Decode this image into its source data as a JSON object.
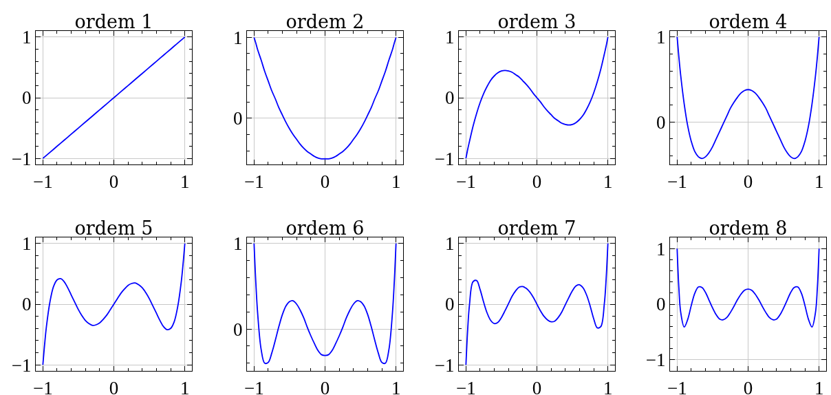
{
  "chart_data": [
    {
      "type": "line",
      "title": "ordem 1",
      "x": [
        -1,
        -0.9,
        -0.8,
        -0.7,
        -0.6,
        -0.5,
        -0.4,
        -0.3,
        -0.2,
        -0.1,
        0,
        0.1,
        0.2,
        0.3,
        0.4,
        0.5,
        0.6,
        0.7,
        0.8,
        0.9,
        1
      ],
      "values": [
        -1,
        -0.9,
        -0.8,
        -0.7,
        -0.6,
        -0.5,
        -0.4,
        -0.3,
        -0.2,
        -0.1,
        0,
        0.1,
        0.2,
        0.3,
        0.4,
        0.5,
        0.6,
        0.7,
        0.8,
        0.9,
        1
      ],
      "color": "#0000ff",
      "xlim": [
        -1.1,
        1.1
      ],
      "ylim": [
        -1.1,
        1.1
      ],
      "xticks": [
        -1,
        {
          "value": -0.8,
          "label": null
        },
        {
          "value": -0.6,
          "label": null
        },
        {
          "value": -0.4,
          "label": null
        },
        {
          "value": -0.2,
          "label": null
        },
        0,
        {
          "value": 0.2,
          "label": null
        },
        {
          "value": 0.4,
          "label": null
        },
        {
          "value": 0.6,
          "label": null
        },
        {
          "value": 0.8,
          "label": null
        },
        1
      ],
      "yticks": [
        -1,
        {
          "value": -0.8,
          "label": null
        },
        {
          "value": -0.6,
          "label": null
        },
        {
          "value": -0.4,
          "label": null
        },
        {
          "value": -0.2,
          "label": null
        },
        0,
        {
          "value": 0.2,
          "label": null
        },
        {
          "value": 0.4,
          "label": null
        },
        {
          "value": 0.6,
          "label": null
        },
        {
          "value": 0.8,
          "label": null
        },
        1
      ],
      "grid": true
    },
    {
      "type": "line",
      "title": "ordem 2",
      "x": [
        -1,
        -0.975,
        -0.95,
        -0.9,
        -0.85,
        -0.8,
        -0.75,
        -0.7,
        -0.65,
        -0.6,
        -0.55,
        -0.5,
        -0.45,
        -0.4,
        -0.35,
        -0.3,
        -0.25,
        -0.2,
        -0.15,
        -0.1,
        -0.05,
        0,
        0.05,
        0.1,
        0.15,
        0.2,
        0.25,
        0.3,
        0.35,
        0.4,
        0.45,
        0.5,
        0.55,
        0.6,
        0.65,
        0.7,
        0.75,
        0.8,
        0.85,
        0.9,
        0.95,
        0.975,
        1
      ],
      "values": [
        1,
        0.93,
        0.85,
        0.72,
        0.58,
        0.46,
        0.34,
        0.24,
        0.13,
        0.04,
        -0.05,
        -0.13,
        -0.2,
        -0.26,
        -0.32,
        -0.37,
        -0.41,
        -0.44,
        -0.47,
        -0.49,
        -0.5,
        -0.5,
        -0.5,
        -0.49,
        -0.47,
        -0.44,
        -0.41,
        -0.37,
        -0.32,
        -0.26,
        -0.2,
        -0.13,
        -0.05,
        0.04,
        0.13,
        0.24,
        0.34,
        0.46,
        0.58,
        0.72,
        0.85,
        0.93,
        1
      ],
      "color": "#0000ff",
      "xlim": [
        -1.1,
        1.1
      ],
      "ylim": [
        -0.57,
        1.08
      ],
      "xticks": [
        -1,
        {
          "value": -0.8,
          "label": null
        },
        {
          "value": -0.6,
          "label": null
        },
        {
          "value": -0.4,
          "label": null
        },
        {
          "value": -0.2,
          "label": null
        },
        0,
        {
          "value": 0.2,
          "label": null
        },
        {
          "value": 0.4,
          "label": null
        },
        {
          "value": 0.6,
          "label": null
        },
        {
          "value": 0.8,
          "label": null
        },
        1
      ],
      "yticks": [
        {
          "value": -0.4,
          "label": null
        },
        {
          "value": -0.2,
          "label": null
        },
        0,
        {
          "value": 0.2,
          "label": null
        },
        {
          "value": 0.4,
          "label": null
        },
        {
          "value": 0.6,
          "label": null
        },
        {
          "value": 0.8,
          "label": null
        },
        1
      ],
      "grid": true
    },
    {
      "type": "line",
      "title": "ordem 3",
      "x": [
        -1,
        -0.975,
        -0.95,
        -0.9,
        -0.85,
        -0.8,
        -0.75,
        -0.7,
        -0.65,
        -0.6,
        -0.55,
        -0.5,
        -0.45,
        -0.4,
        -0.35,
        -0.3,
        -0.25,
        -0.2,
        -0.15,
        -0.1,
        -0.05,
        0,
        0.05,
        0.1,
        0.15,
        0.2,
        0.25,
        0.3,
        0.35,
        0.4,
        0.45,
        0.5,
        0.55,
        0.6,
        0.65,
        0.7,
        0.75,
        0.8,
        0.85,
        0.9,
        0.95,
        0.975,
        1
      ],
      "values": [
        -1,
        -0.85,
        -0.72,
        -0.47,
        -0.26,
        -0.08,
        0.07,
        0.19,
        0.29,
        0.36,
        0.41,
        0.44,
        0.45,
        0.44,
        0.42,
        0.38,
        0.34,
        0.28,
        0.22,
        0.15,
        0.07,
        0,
        -0.07,
        -0.15,
        -0.22,
        -0.28,
        -0.34,
        -0.38,
        -0.42,
        -0.44,
        -0.45,
        -0.44,
        -0.41,
        -0.36,
        -0.29,
        -0.19,
        -0.07,
        0.08,
        0.26,
        0.47,
        0.72,
        0.85,
        1
      ],
      "color": "#0000ff",
      "xlim": [
        -1.1,
        1.1
      ],
      "ylim": [
        -1.1,
        1.1
      ],
      "xticks": [
        -1,
        {
          "value": -0.8,
          "label": null
        },
        {
          "value": -0.6,
          "label": null
        },
        {
          "value": -0.4,
          "label": null
        },
        {
          "value": -0.2,
          "label": null
        },
        0,
        {
          "value": 0.2,
          "label": null
        },
        {
          "value": 0.4,
          "label": null
        },
        {
          "value": 0.6,
          "label": null
        },
        {
          "value": 0.8,
          "label": null
        },
        1
      ],
      "yticks": [
        -1,
        {
          "value": -0.8,
          "label": null
        },
        {
          "value": -0.6,
          "label": null
        },
        {
          "value": -0.4,
          "label": null
        },
        {
          "value": -0.2,
          "label": null
        },
        0,
        {
          "value": 0.2,
          "label": null
        },
        {
          "value": 0.4,
          "label": null
        },
        {
          "value": 0.6,
          "label": null
        },
        {
          "value": 0.8,
          "label": null
        },
        1
      ],
      "grid": true
    },
    {
      "type": "line",
      "title": "ordem 4",
      "x": [
        -1,
        -0.975,
        -0.95,
        -0.9,
        -0.85,
        -0.8,
        -0.75,
        -0.7,
        -0.65,
        -0.6,
        -0.55,
        -0.5,
        -0.45,
        -0.4,
        -0.35,
        -0.3,
        -0.25,
        -0.2,
        -0.15,
        -0.1,
        -0.05,
        0,
        0.05,
        0.1,
        0.15,
        0.2,
        0.25,
        0.3,
        0.35,
        0.4,
        0.45,
        0.5,
        0.55,
        0.6,
        0.65,
        0.7,
        0.75,
        0.8,
        0.85,
        0.9,
        0.95,
        0.975,
        1
      ],
      "values": [
        1,
        0.76,
        0.55,
        0.21,
        -0.05,
        -0.23,
        -0.35,
        -0.41,
        -0.43,
        -0.41,
        -0.36,
        -0.29,
        -0.2,
        -0.11,
        -0.02,
        0.07,
        0.16,
        0.23,
        0.29,
        0.34,
        0.37,
        0.38,
        0.37,
        0.34,
        0.29,
        0.23,
        0.16,
        0.07,
        -0.02,
        -0.11,
        -0.2,
        -0.29,
        -0.36,
        -0.41,
        -0.43,
        -0.41,
        -0.35,
        -0.23,
        -0.05,
        0.21,
        0.55,
        0.76,
        1
      ],
      "color": "#0000ff",
      "xlim": [
        -1.1,
        1.1
      ],
      "ylim": [
        -0.5,
        1.07
      ],
      "xticks": [
        -1,
        {
          "value": -0.8,
          "label": null
        },
        {
          "value": -0.6,
          "label": null
        },
        {
          "value": -0.4,
          "label": null
        },
        {
          "value": -0.2,
          "label": null
        },
        0,
        {
          "value": 0.2,
          "label": null
        },
        {
          "value": 0.4,
          "label": null
        },
        {
          "value": 0.6,
          "label": null
        },
        {
          "value": 0.8,
          "label": null
        },
        1
      ],
      "yticks": [
        {
          "value": -0.4,
          "label": null
        },
        {
          "value": -0.2,
          "label": null
        },
        0,
        {
          "value": 0.2,
          "label": null
        },
        {
          "value": 0.4,
          "label": null
        },
        {
          "value": 0.6,
          "label": null
        },
        {
          "value": 0.8,
          "label": null
        },
        1
      ],
      "grid": true
    },
    {
      "type": "line",
      "title": "ordem 5",
      "x": [
        -1,
        -0.975,
        -0.95,
        -0.9,
        -0.85,
        -0.8,
        -0.75,
        -0.7,
        -0.65,
        -0.6,
        -0.55,
        -0.5,
        -0.45,
        -0.4,
        -0.35,
        -0.3,
        -0.25,
        -0.2,
        -0.15,
        -0.1,
        -0.05,
        0,
        0.05,
        0.1,
        0.15,
        0.2,
        0.25,
        0.3,
        0.35,
        0.4,
        0.45,
        0.5,
        0.55,
        0.6,
        0.65,
        0.7,
        0.75,
        0.8,
        0.85,
        0.9,
        0.95,
        0.975,
        1
      ],
      "values": [
        -1,
        -0.66,
        -0.37,
        0.04,
        0.29,
        0.4,
        0.42,
        0.37,
        0.27,
        0.15,
        0.03,
        -0.09,
        -0.19,
        -0.27,
        -0.32,
        -0.35,
        -0.34,
        -0.31,
        -0.25,
        -0.18,
        -0.09,
        0,
        0.09,
        0.18,
        0.25,
        0.31,
        0.34,
        0.35,
        0.32,
        0.27,
        0.19,
        0.09,
        -0.03,
        -0.15,
        -0.27,
        -0.37,
        -0.42,
        -0.4,
        -0.29,
        -0.04,
        0.37,
        0.66,
        1
      ],
      "color": "#0000ff",
      "xlim": [
        -1.1,
        1.1
      ],
      "ylim": [
        -1.1,
        1.1
      ],
      "xticks": [
        -1,
        {
          "value": -0.8,
          "label": null
        },
        {
          "value": -0.6,
          "label": null
        },
        {
          "value": -0.4,
          "label": null
        },
        {
          "value": -0.2,
          "label": null
        },
        0,
        {
          "value": 0.2,
          "label": null
        },
        {
          "value": 0.4,
          "label": null
        },
        {
          "value": 0.6,
          "label": null
        },
        {
          "value": 0.8,
          "label": null
        },
        1
      ],
      "yticks": [
        -1,
        {
          "value": -0.8,
          "label": null
        },
        {
          "value": -0.6,
          "label": null
        },
        {
          "value": -0.4,
          "label": null
        },
        {
          "value": -0.2,
          "label": null
        },
        0,
        {
          "value": 0.2,
          "label": null
        },
        {
          "value": 0.4,
          "label": null
        },
        {
          "value": 0.6,
          "label": null
        },
        {
          "value": 0.8,
          "label": null
        },
        1
      ],
      "grid": true
    },
    {
      "type": "line",
      "title": "ordem 6",
      "x": [
        -1,
        -0.975,
        -0.95,
        -0.9,
        -0.85,
        -0.8,
        -0.75,
        -0.7,
        -0.65,
        -0.6,
        -0.55,
        -0.5,
        -0.45,
        -0.4,
        -0.35,
        -0.3,
        -0.25,
        -0.2,
        -0.15,
        -0.1,
        -0.05,
        0,
        0.05,
        0.1,
        0.15,
        0.2,
        0.25,
        0.3,
        0.35,
        0.4,
        0.45,
        0.5,
        0.55,
        0.6,
        0.65,
        0.7,
        0.75,
        0.8,
        0.85,
        0.9,
        0.95,
        0.975,
        1
      ],
      "values": [
        1,
        0.54,
        0.19,
        -0.24,
        -0.4,
        -0.39,
        -0.28,
        -0.13,
        0.03,
        0.17,
        0.27,
        0.32,
        0.33,
        0.29,
        0.22,
        0.13,
        0.02,
        -0.08,
        -0.17,
        -0.25,
        -0.3,
        -0.31,
        -0.3,
        -0.25,
        -0.17,
        -0.08,
        0.02,
        0.13,
        0.22,
        0.29,
        0.33,
        0.32,
        0.27,
        0.17,
        0.03,
        -0.13,
        -0.28,
        -0.39,
        -0.4,
        -0.24,
        0.19,
        0.54,
        1
      ],
      "color": "#0000ff",
      "xlim": [
        -1.1,
        1.1
      ],
      "ylim": [
        -0.49,
        1.07
      ],
      "xticks": [
        -1,
        {
          "value": -0.8,
          "label": null
        },
        {
          "value": -0.6,
          "label": null
        },
        {
          "value": -0.4,
          "label": null
        },
        {
          "value": -0.2,
          "label": null
        },
        0,
        {
          "value": 0.2,
          "label": null
        },
        {
          "value": 0.4,
          "label": null
        },
        {
          "value": 0.6,
          "label": null
        },
        {
          "value": 0.8,
          "label": null
        },
        1
      ],
      "yticks": [
        {
          "value": -0.4,
          "label": null
        },
        {
          "value": -0.2,
          "label": null
        },
        0,
        {
          "value": 0.2,
          "label": null
        },
        {
          "value": 0.4,
          "label": null
        },
        {
          "value": 0.6,
          "label": null
        },
        {
          "value": 0.8,
          "label": null
        },
        1
      ],
      "grid": true
    },
    {
      "type": "line",
      "title": "ordem 7",
      "x": [
        -1,
        -0.975,
        -0.95,
        -0.9,
        -0.85,
        -0.8,
        -0.75,
        -0.7,
        -0.65,
        -0.6,
        -0.55,
        -0.5,
        -0.45,
        -0.4,
        -0.35,
        -0.3,
        -0.25,
        -0.2,
        -0.15,
        -0.1,
        -0.05,
        0,
        0.05,
        0.1,
        0.15,
        0.2,
        0.25,
        0.3,
        0.35,
        0.4,
        0.45,
        0.5,
        0.55,
        0.6,
        0.65,
        0.7,
        0.75,
        0.8,
        0.85,
        0.9,
        0.95,
        0.975,
        1
      ],
      "values": [
        -1,
        -0.41,
        -0.01,
        0.37,
        0.39,
        0.24,
        0.03,
        -0.15,
        -0.27,
        -0.32,
        -0.3,
        -0.22,
        -0.11,
        0.01,
        0.13,
        0.22,
        0.28,
        0.29,
        0.26,
        0.2,
        0.11,
        0,
        -0.11,
        -0.2,
        -0.26,
        -0.29,
        -0.28,
        -0.22,
        -0.13,
        -0.01,
        0.11,
        0.22,
        0.3,
        0.32,
        0.27,
        0.15,
        -0.03,
        -0.24,
        -0.39,
        -0.37,
        0.01,
        0.41,
        1
      ],
      "color": "#0000ff",
      "xlim": [
        -1.1,
        1.1
      ],
      "ylim": [
        -1.1,
        1.1
      ],
      "xticks": [
        -1,
        {
          "value": -0.8,
          "label": null
        },
        {
          "value": -0.6,
          "label": null
        },
        {
          "value": -0.4,
          "label": null
        },
        {
          "value": -0.2,
          "label": null
        },
        0,
        {
          "value": 0.2,
          "label": null
        },
        {
          "value": 0.4,
          "label": null
        },
        {
          "value": 0.6,
          "label": null
        },
        {
          "value": 0.8,
          "label": null
        },
        1
      ],
      "yticks": [
        -1,
        {
          "value": -0.8,
          "label": null
        },
        {
          "value": -0.6,
          "label": null
        },
        {
          "value": -0.4,
          "label": null
        },
        {
          "value": -0.2,
          "label": null
        },
        0,
        {
          "value": 0.2,
          "label": null
        },
        {
          "value": 0.4,
          "label": null
        },
        {
          "value": 0.6,
          "label": null
        },
        {
          "value": 0.8,
          "label": null
        },
        1
      ],
      "grid": true
    },
    {
      "type": "line",
      "title": "ordem 8",
      "x": [
        -1,
        -0.975,
        -0.95,
        -0.9,
        -0.85,
        -0.8,
        -0.75,
        -0.7,
        -0.65,
        -0.6,
        -0.55,
        -0.5,
        -0.45,
        -0.4,
        -0.35,
        -0.3,
        -0.25,
        -0.2,
        -0.15,
        -0.1,
        -0.05,
        0,
        0.05,
        0.1,
        0.15,
        0.2,
        0.25,
        0.3,
        0.35,
        0.4,
        0.45,
        0.5,
        0.55,
        0.6,
        0.65,
        0.7,
        0.75,
        0.8,
        0.85,
        0.9,
        0.95,
        0.975,
        1
      ],
      "values": [
        1,
        0.28,
        -0.14,
        -0.41,
        -0.27,
        -0.02,
        0.2,
        0.31,
        0.3,
        0.21,
        0.07,
        -0.07,
        -0.19,
        -0.27,
        -0.28,
        -0.24,
        -0.15,
        -0.04,
        0.08,
        0.18,
        0.25,
        0.27,
        0.25,
        0.18,
        0.08,
        -0.04,
        -0.15,
        -0.24,
        -0.28,
        -0.27,
        -0.19,
        -0.07,
        0.07,
        0.21,
        0.3,
        0.31,
        0.2,
        -0.02,
        -0.27,
        -0.41,
        -0.14,
        0.28,
        1
      ],
      "color": "#0000ff",
      "xlim": [
        -1.1,
        1.1
      ],
      "ylim": [
        -1.2,
        1.2
      ],
      "xticks": [
        -1,
        {
          "value": -0.8,
          "label": null
        },
        {
          "value": -0.6,
          "label": null
        },
        {
          "value": -0.4,
          "label": null
        },
        {
          "value": -0.2,
          "label": null
        },
        0,
        {
          "value": 0.2,
          "label": null
        },
        {
          "value": 0.4,
          "label": null
        },
        {
          "value": 0.6,
          "label": null
        },
        {
          "value": 0.8,
          "label": null
        },
        1
      ],
      "yticks": [
        -1,
        {
          "value": -0.8,
          "label": null
        },
        {
          "value": -0.6,
          "label": null
        },
        {
          "value": -0.4,
          "label": null
        },
        {
          "value": -0.2,
          "label": null
        },
        0,
        {
          "value": 0.2,
          "label": null
        },
        {
          "value": 0.4,
          "label": null
        },
        {
          "value": 0.6,
          "label": null
        },
        {
          "value": 0.8,
          "label": null
        },
        1
      ],
      "grid": true
    }
  ]
}
